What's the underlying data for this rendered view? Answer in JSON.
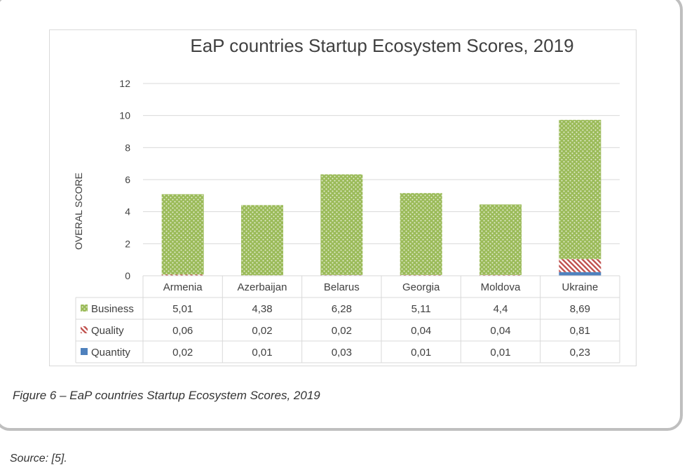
{
  "caption": "Figure 6 – EaP countries Startup Ecosystem Scores, 2019",
  "source": "Source: [5].",
  "colors": {
    "business": "#9bbb59",
    "quality": "#c0504d",
    "quantity": "#4f81bd",
    "grid": "#d9d9d9",
    "text": "#404040"
  },
  "chart_data": {
    "type": "bar",
    "stacked": true,
    "title": "EaP countries Startup Ecosystem Scores, 2019",
    "xlabel": "",
    "ylabel": "OVERAL SCORE",
    "ylim": [
      0,
      12
    ],
    "yticks": [
      "0",
      "2",
      "4",
      "6",
      "8",
      "10",
      "12"
    ],
    "categories": [
      "Armenia",
      "Azerbaijan",
      "Belarus",
      "Georgia",
      "Moldova",
      "Ukraine"
    ],
    "series": [
      {
        "name": "Business",
        "values": [
          5.01,
          4.38,
          6.28,
          5.11,
          4.4,
          8.69
        ],
        "labels": [
          "5,01",
          "4,38",
          "6,28",
          "5,11",
          "4,4",
          "8,69"
        ]
      },
      {
        "name": "Quality",
        "values": [
          0.06,
          0.02,
          0.02,
          0.04,
          0.04,
          0.81
        ],
        "labels": [
          "0,06",
          "0,02",
          "0,02",
          "0,04",
          "0,04",
          "0,81"
        ]
      },
      {
        "name": "Quantity",
        "values": [
          0.02,
          0.01,
          0.03,
          0.01,
          0.01,
          0.23
        ],
        "labels": [
          "0,02",
          "0,01",
          "0,03",
          "0,01",
          "0,01",
          "0,23"
        ]
      }
    ],
    "data_table": true
  }
}
